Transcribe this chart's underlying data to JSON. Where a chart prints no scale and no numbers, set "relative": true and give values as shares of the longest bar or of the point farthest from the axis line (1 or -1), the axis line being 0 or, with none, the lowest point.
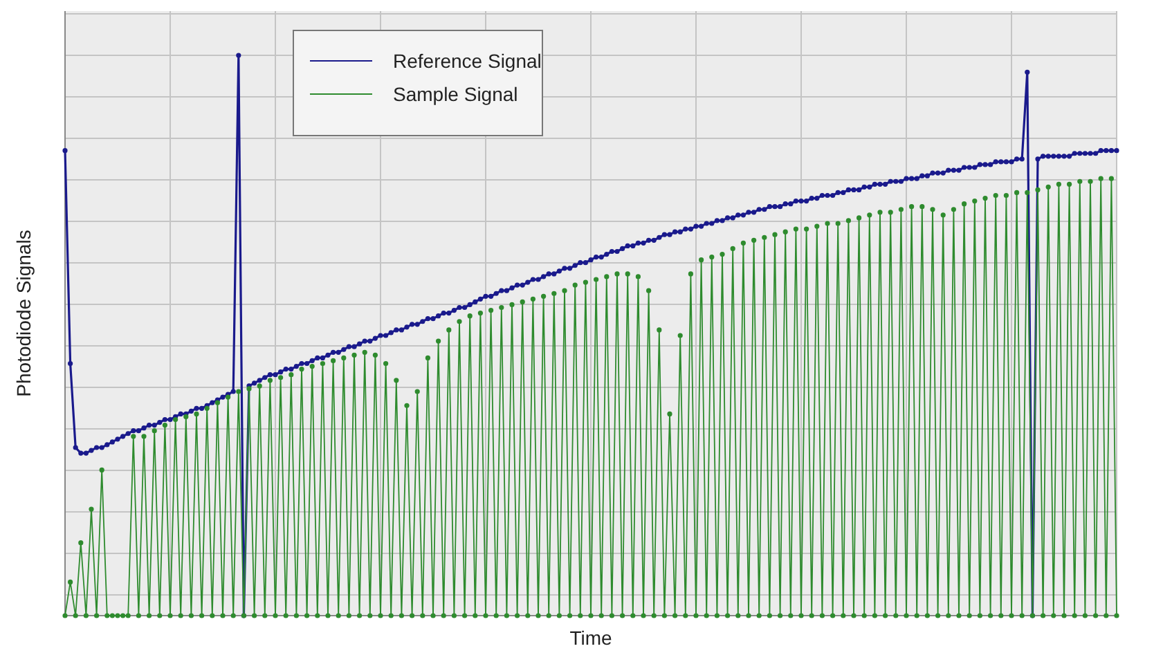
{
  "chart_data": {
    "type": "line",
    "xlabel": "Time",
    "ylabel": "Photodiode Signals",
    "relative": true,
    "grid": true,
    "legend": "top left",
    "marker": "circle",
    "categories": [
      null,
      null,
      null,
      null,
      null,
      null,
      null,
      null,
      null,
      null,
      null,
      null,
      null,
      null,
      null,
      null,
      null,
      null,
      null,
      null,
      null,
      null,
      null,
      null,
      null,
      null,
      null,
      null,
      null,
      null,
      null,
      null,
      null,
      null,
      null,
      null,
      null,
      null,
      null,
      null,
      null,
      null,
      null,
      null,
      null,
      null,
      null,
      null,
      null,
      null,
      null,
      null,
      null,
      null,
      null,
      null,
      null,
      null,
      null,
      null,
      null,
      null,
      null,
      null,
      null,
      null,
      null,
      null,
      null,
      null,
      null,
      null,
      null,
      null,
      null,
      null,
      null,
      null,
      null,
      null,
      null,
      null,
      null,
      null,
      null,
      null,
      null,
      null,
      null,
      null,
      null,
      null,
      null,
      null,
      null,
      null,
      null,
      null,
      null,
      null,
      null,
      null,
      null,
      null,
      null,
      null,
      null,
      null,
      null,
      null,
      null,
      null,
      null,
      null,
      null,
      null,
      null,
      null,
      null,
      null,
      null,
      null,
      null,
      null,
      null,
      null,
      null,
      null,
      null,
      null,
      null,
      null,
      null,
      null,
      null,
      null,
      null,
      null,
      null,
      null,
      null,
      null,
      null,
      null,
      null,
      null,
      null,
      null,
      null,
      null,
      null,
      null,
      null,
      null,
      null,
      null,
      null,
      null,
      null,
      null,
      null,
      null,
      null,
      null,
      null,
      null,
      null,
      null,
      null,
      null,
      null,
      null,
      null,
      null,
      null,
      null,
      null,
      null,
      null,
      null,
      null,
      null,
      null,
      null,
      null,
      null,
      null,
      null,
      null,
      null,
      null,
      null,
      null,
      null,
      null,
      null,
      null,
      null,
      null,
      null,
      null
    ],
    "series": [
      {
        "name": "Reference Signal",
        "color": "#1a1a8c",
        "values": [
          0.83,
          0.45,
          0.3,
          0.29,
          0.29,
          0.295,
          0.3,
          0.3,
          0.305,
          0.31,
          0.315,
          0.32,
          0.325,
          0.33,
          0.33,
          0.335,
          0.34,
          0.34,
          0.345,
          0.35,
          0.35,
          0.355,
          0.36,
          0.36,
          0.365,
          0.37,
          0.37,
          0.375,
          0.38,
          0.385,
          0.39,
          0.395,
          0.4,
          1,
          0,
          0.41,
          0.415,
          0.42,
          0.425,
          0.43,
          0.43,
          0.435,
          0.44,
          0.44,
          0.445,
          0.45,
          0.45,
          0.455,
          0.46,
          0.46,
          0.465,
          0.47,
          0.47,
          0.475,
          0.48,
          0.48,
          0.485,
          0.49,
          0.49,
          0.495,
          0.5,
          0.5,
          0.505,
          0.51,
          0.51,
          0.515,
          0.52,
          0.52,
          0.525,
          0.53,
          0.53,
          0.535,
          0.54,
          0.54,
          0.545,
          0.55,
          0.55,
          0.555,
          0.56,
          0.565,
          0.57,
          0.57,
          0.575,
          0.58,
          0.58,
          0.585,
          0.59,
          0.59,
          0.595,
          0.6,
          0.6,
          0.605,
          0.61,
          0.61,
          0.615,
          0.62,
          0.62,
          0.625,
          0.63,
          0.63,
          0.635,
          0.64,
          0.64,
          0.645,
          0.65,
          0.65,
          0.655,
          0.66,
          0.66,
          0.665,
          0.665,
          0.67,
          0.67,
          0.675,
          0.68,
          0.68,
          0.685,
          0.685,
          0.69,
          0.69,
          0.695,
          0.695,
          0.7,
          0.7,
          0.705,
          0.705,
          0.71,
          0.71,
          0.715,
          0.715,
          0.72,
          0.72,
          0.725,
          0.725,
          0.73,
          0.73,
          0.73,
          0.735,
          0.735,
          0.74,
          0.74,
          0.74,
          0.745,
          0.745,
          0.75,
          0.75,
          0.75,
          0.755,
          0.755,
          0.76,
          0.76,
          0.76,
          0.765,
          0.765,
          0.77,
          0.77,
          0.77,
          0.775,
          0.775,
          0.775,
          0.78,
          0.78,
          0.78,
          0.785,
          0.785,
          0.79,
          0.79,
          0.79,
          0.795,
          0.795,
          0.795,
          0.8,
          0.8,
          0.8,
          0.805,
          0.805,
          0.805,
          0.81,
          0.81,
          0.81,
          0.81,
          0.815,
          0.815,
          0.97,
          0,
          0.815,
          0.82,
          0.82,
          0.82,
          0.82,
          0.82,
          0.82,
          0.825,
          0.825,
          0.825,
          0.825,
          0.825,
          0.83,
          0.83,
          0.83,
          0.83
        ]
      },
      {
        "name": "Sample Signal",
        "color": "#2e8b2e",
        "values": [
          0,
          0.06,
          0,
          0.13,
          0,
          0.19,
          0,
          0.26,
          0,
          0,
          0,
          0,
          0,
          0.32,
          0,
          0.32,
          0,
          0.33,
          0,
          0.34,
          0,
          0.35,
          0,
          0.355,
          0,
          0.36,
          0,
          0.37,
          0,
          0.38,
          0,
          0.39,
          0,
          0.4,
          0,
          0.405,
          0,
          0.41,
          0,
          0.42,
          0,
          0.425,
          0,
          0.43,
          0,
          0.44,
          0,
          0.445,
          0,
          0.45,
          0,
          0.455,
          0,
          0.46,
          0,
          0.465,
          0,
          0.47,
          0,
          0.465,
          0,
          0.45,
          0,
          0.42,
          0,
          0.375,
          0,
          0.4,
          0,
          0.46,
          0,
          0.49,
          0,
          0.51,
          0,
          0.525,
          0,
          0.535,
          0,
          0.54,
          0,
          0.545,
          0,
          0.55,
          0,
          0.555,
          0,
          0.56,
          0,
          0.565,
          0,
          0.57,
          0,
          0.575,
          0,
          0.58,
          0,
          0.59,
          0,
          0.595,
          0,
          0.6,
          0,
          0.605,
          0,
          0.61,
          0,
          0.61,
          0,
          0.605,
          0,
          0.58,
          0,
          0.51,
          0,
          0.36,
          0,
          0.5,
          0,
          0.61,
          0,
          0.635,
          0,
          0.64,
          0,
          0.645,
          0,
          0.655,
          0,
          0.665,
          0,
          0.67,
          0,
          0.675,
          0,
          0.68,
          0,
          0.685,
          0,
          0.69,
          0,
          0.69,
          0,
          0.695,
          0,
          0.7,
          0,
          0.7,
          0,
          0.705,
          0,
          0.71,
          0,
          0.715,
          0,
          0.72,
          0,
          0.72,
          0,
          0.725,
          0,
          0.73,
          0,
          0.73,
          0,
          0.725,
          0,
          0.715,
          0,
          0.725,
          0,
          0.735,
          0,
          0.74,
          0,
          0.745,
          0,
          0.75,
          0,
          0.75,
          0,
          0.755,
          0,
          0.755,
          0,
          0.76,
          0,
          0.765,
          0,
          0.77,
          0,
          0.77,
          0,
          0.775,
          0,
          0.775,
          0,
          0.78,
          0,
          0.78,
          0
        ]
      }
    ]
  }
}
